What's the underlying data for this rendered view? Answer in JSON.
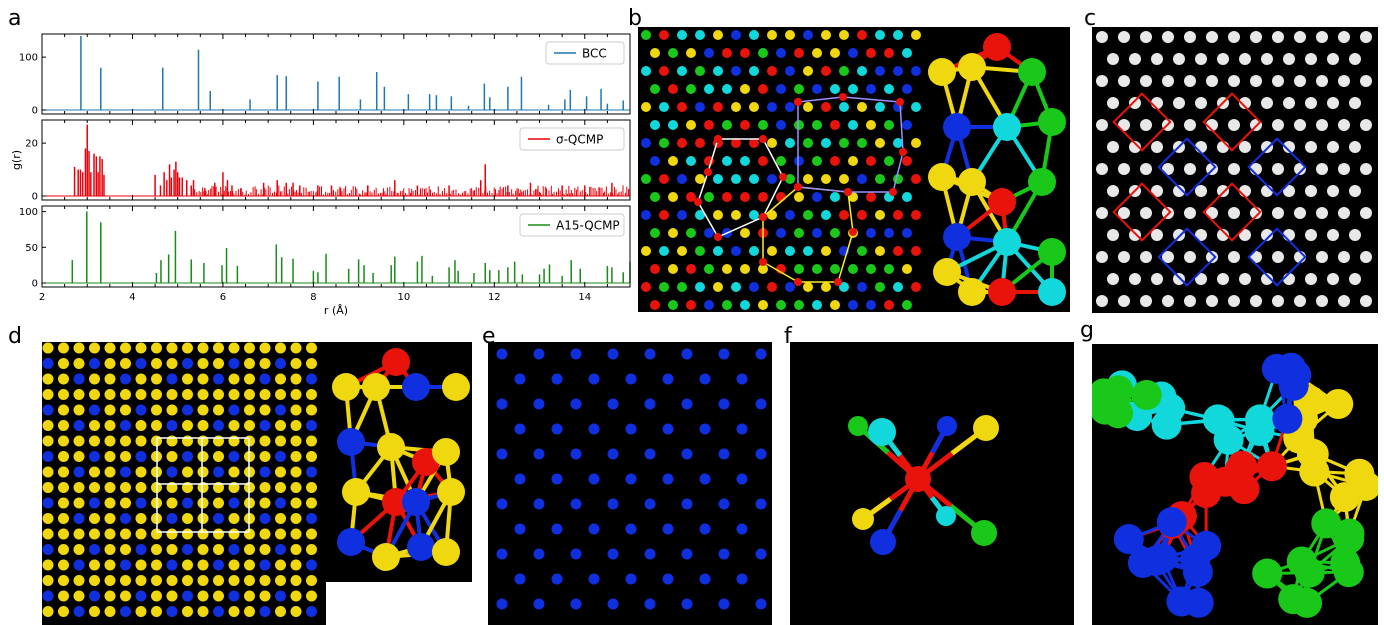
{
  "panel_labels": {
    "a": "a",
    "b": "b",
    "c": "c",
    "d": "d",
    "e": "e",
    "f": "f",
    "g": "g"
  },
  "colors": {
    "bcc": "#1f77b4",
    "sigma": "#e8000b",
    "a15": "#1a8a1a",
    "atom_red": "#e8140c",
    "atom_blue": "#1030e0",
    "atom_cyan": "#12d8dc",
    "atom_green": "#1ac81a",
    "atom_yellow": "#f0d810",
    "atom_white": "#e8e8e8",
    "outline_white": "#ffffff",
    "outline_yellow": "#ffee22",
    "outline_purple": "#9a90ff",
    "outline_red": "#e8140c",
    "outline_blue": "#1030e0"
  },
  "chart_data": {
    "type": "line",
    "subtype": "stacked pair-distribution spectra",
    "xlabel": "r (Å)",
    "ylabel": "g(r)",
    "xlim": [
      2,
      15
    ],
    "x_ticks": [
      "2",
      "4",
      "6",
      "8",
      "10",
      "12",
      "14"
    ],
    "legend_position": "top-right",
    "panels": [
      {
        "name": "BCC",
        "legend_label": "BCC",
        "ylim": [
          0,
          140
        ],
        "y_ticks": [
          "0",
          "100"
        ],
        "peaks": [
          [
            2.86,
            140
          ],
          [
            3.3,
            80
          ],
          [
            4.67,
            80
          ],
          [
            5.46,
            114
          ],
          [
            5.72,
            36
          ],
          [
            6.6,
            20
          ],
          [
            7.2,
            66
          ],
          [
            7.4,
            64
          ],
          [
            8.1,
            54
          ],
          [
            8.57,
            63
          ],
          [
            9.04,
            20
          ],
          [
            9.4,
            72
          ],
          [
            9.57,
            44
          ],
          [
            10.1,
            30
          ],
          [
            10.57,
            30
          ],
          [
            10.72,
            28
          ],
          [
            11.05,
            26
          ],
          [
            11.43,
            8
          ],
          [
            11.78,
            50
          ],
          [
            11.9,
            24
          ],
          [
            12.3,
            44
          ],
          [
            12.6,
            63
          ],
          [
            13.2,
            10
          ],
          [
            13.56,
            20
          ],
          [
            13.68,
            38
          ],
          [
            14.04,
            26
          ],
          [
            14.36,
            40
          ],
          [
            14.5,
            12
          ],
          [
            14.85,
            18
          ]
        ]
      },
      {
        "name": "σ-QCMP",
        "legend_label": "σ-QCMP",
        "ylim": [
          0,
          28
        ],
        "y_ticks": [
          "0",
          "20"
        ],
        "peaks": [
          [
            2.72,
            11
          ],
          [
            2.8,
            10
          ],
          [
            2.85,
            10
          ],
          [
            2.9,
            9
          ],
          [
            2.96,
            18
          ],
          [
            3.0,
            27
          ],
          [
            3.04,
            17
          ],
          [
            3.08,
            9
          ],
          [
            3.15,
            16
          ],
          [
            3.2,
            15
          ],
          [
            3.24,
            9
          ],
          [
            3.28,
            15
          ],
          [
            3.33,
            14
          ],
          [
            3.37,
            8
          ],
          [
            4.5,
            8
          ],
          [
            4.62,
            4
          ],
          [
            4.7,
            9
          ],
          [
            4.76,
            6
          ],
          [
            4.82,
            12
          ],
          [
            4.86,
            7
          ],
          [
            4.92,
            10
          ],
          [
            4.96,
            13
          ],
          [
            5.0,
            9
          ],
          [
            5.04,
            7
          ],
          [
            5.1,
            7
          ],
          [
            5.2,
            6
          ],
          [
            5.3,
            4
          ],
          [
            5.35,
            6
          ],
          [
            5.6,
            3
          ],
          [
            5.82,
            5
          ],
          [
            6.0,
            9
          ],
          [
            6.1,
            6
          ],
          [
            6.2,
            4
          ],
          [
            6.4,
            3
          ],
          [
            6.9,
            5
          ],
          [
            7.2,
            6
          ],
          [
            7.4,
            5
          ],
          [
            7.55,
            5
          ],
          [
            7.7,
            4
          ],
          [
            8.1,
            4
          ],
          [
            8.4,
            4
          ],
          [
            8.6,
            3
          ],
          [
            9.2,
            4
          ],
          [
            9.8,
            6
          ],
          [
            10.3,
            4
          ],
          [
            11.0,
            4
          ],
          [
            11.7,
            6
          ],
          [
            11.8,
            12
          ],
          [
            12.3,
            4
          ],
          [
            12.8,
            5
          ],
          [
            13.5,
            4
          ],
          [
            14.0,
            4
          ],
          [
            14.6,
            5
          ]
        ],
        "noise_floor": [
          0.5,
          4
        ],
        "dense_region_start": 5.3
      },
      {
        "name": "A15-QCMP",
        "legend_label": "A15-QCMP",
        "ylim": [
          0,
          105
        ],
        "y_ticks": [
          "0",
          "50",
          "100"
        ],
        "peaks": [
          [
            2.67,
            32
          ],
          [
            2.99,
            100
          ],
          [
            3.3,
            85
          ],
          [
            4.53,
            14
          ],
          [
            4.63,
            32
          ],
          [
            4.8,
            40
          ],
          [
            4.95,
            73
          ],
          [
            5.3,
            33
          ],
          [
            5.58,
            28
          ],
          [
            5.98,
            25
          ],
          [
            6.08,
            49
          ],
          [
            6.32,
            24
          ],
          [
            7.18,
            54
          ],
          [
            7.3,
            36
          ],
          [
            7.55,
            34
          ],
          [
            8.0,
            17
          ],
          [
            8.1,
            15
          ],
          [
            8.28,
            41
          ],
          [
            8.78,
            20
          ],
          [
            9.0,
            33
          ],
          [
            9.12,
            25
          ],
          [
            9.32,
            14
          ],
          [
            9.72,
            25
          ],
          [
            9.8,
            37
          ],
          [
            10.3,
            30
          ],
          [
            10.4,
            38
          ],
          [
            10.63,
            10
          ],
          [
            11.0,
            22
          ],
          [
            11.13,
            32
          ],
          [
            11.2,
            17
          ],
          [
            11.55,
            14
          ],
          [
            11.8,
            28
          ],
          [
            11.9,
            18
          ],
          [
            12.1,
            18
          ],
          [
            12.3,
            22
          ],
          [
            12.45,
            30
          ],
          [
            12.62,
            12
          ],
          [
            13.0,
            12
          ],
          [
            13.1,
            20
          ],
          [
            13.22,
            26
          ],
          [
            13.5,
            10
          ],
          [
            13.7,
            32
          ],
          [
            13.9,
            20
          ],
          [
            14.5,
            24
          ],
          [
            14.6,
            22
          ],
          [
            14.85,
            15
          ],
          [
            15.0,
            30
          ]
        ]
      }
    ]
  }
}
